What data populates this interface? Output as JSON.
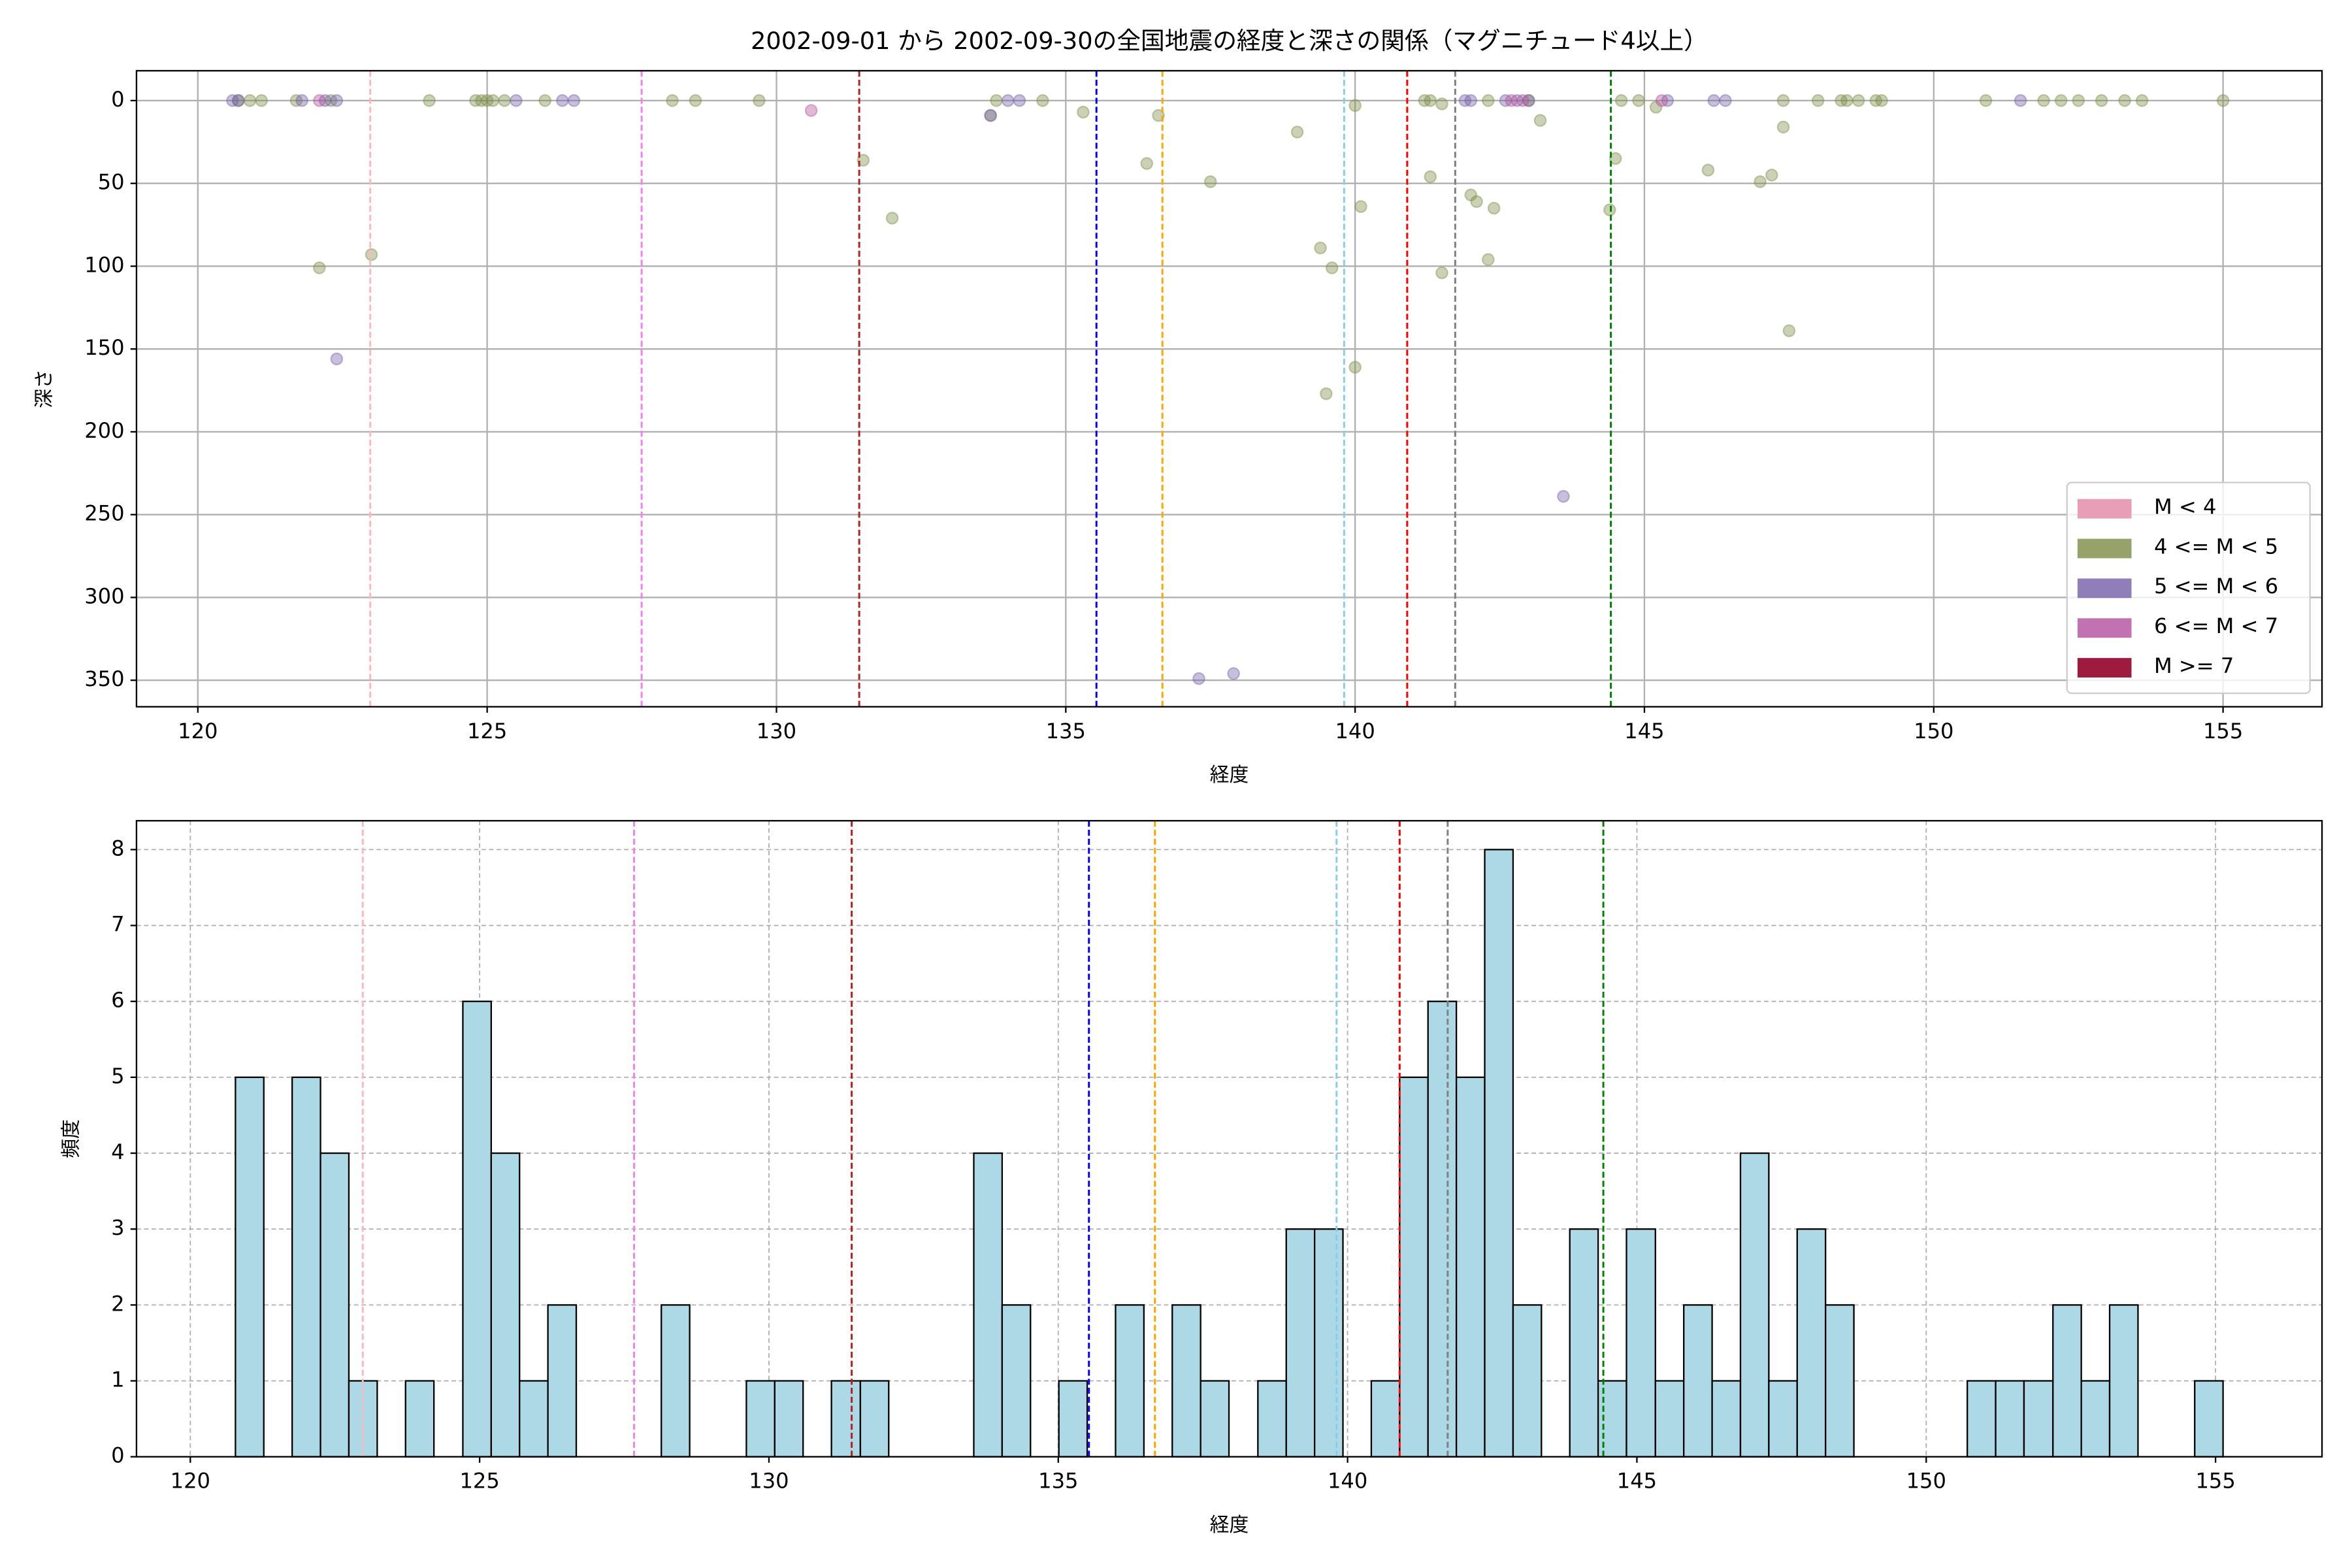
{
  "chart_data": [
    {
      "type": "scatter",
      "title": "2002-09-01 から 2002-09-30の全国地震の経度と深さの関係（マグニチュード4以上）",
      "x_label": "経度",
      "y_label": "深さ",
      "xlim": [
        118.94,
        156.71
      ],
      "ylim": [
        366,
        -18
      ],
      "xticks": [
        120,
        125,
        130,
        135,
        140,
        145,
        150,
        155
      ],
      "yticks": [
        0,
        50,
        100,
        150,
        200,
        250,
        300,
        350
      ],
      "grid": true,
      "grid_style": "solid",
      "legend": "lower right",
      "alpha": 0.4,
      "vlines": [
        {
          "value": 122.98,
          "color": "#ffb6c1"
        },
        {
          "value": 127.67,
          "color": "#ee82ee"
        },
        {
          "value": 131.43,
          "color": "#b22222"
        },
        {
          "value": 135.53,
          "color": "#0000ff"
        },
        {
          "value": 136.67,
          "color": "#ffa500"
        },
        {
          "value": 139.81,
          "color": "#87ceeb"
        },
        {
          "value": 140.9,
          "color": "#ff0000"
        },
        {
          "value": 141.73,
          "color": "#808080"
        },
        {
          "value": 144.42,
          "color": "#008000"
        }
      ],
      "series": [
        {
          "name": "M < 4",
          "color": "#e79eb6",
          "x": [],
          "values": []
        },
        {
          "name": "4 <= M < 5",
          "color": "#7a8c46",
          "x": [
            120.7,
            120.9,
            121.1,
            121.7,
            122.1,
            122.3,
            123.0,
            124.0,
            124.8,
            124.9,
            125.0,
            125.1,
            125.3,
            126.0,
            128.2,
            128.6,
            129.7,
            131.5,
            132.0,
            133.8,
            133.7,
            134.6,
            135.3,
            136.4,
            136.6,
            137.5,
            139.0,
            139.4,
            139.6,
            139.5,
            140.0,
            140.1,
            140.0,
            141.2,
            141.3,
            141.3,
            141.5,
            141.5,
            142.0,
            142.1,
            142.3,
            142.4,
            142.3,
            143.0,
            143.2,
            144.4,
            144.5,
            144.6,
            144.9,
            145.2,
            146.1,
            147.0,
            147.2,
            147.4,
            147.4,
            147.5,
            148.0,
            148.4,
            148.5,
            148.7,
            149.0,
            149.1,
            150.9,
            151.9,
            152.2,
            152.5,
            152.9,
            153.3,
            153.6,
            155.0
          ],
          "values": [
            0,
            0,
            0,
            0,
            101,
            0,
            93,
            0,
            0,
            0,
            0,
            0,
            0,
            0,
            0,
            0,
            0,
            36,
            71,
            0,
            9,
            0,
            7,
            38,
            9,
            49,
            19,
            89,
            101,
            177,
            3,
            64,
            161,
            0,
            0,
            46,
            2,
            104,
            57,
            61,
            0,
            65,
            96,
            0,
            12,
            66,
            35,
            0,
            0,
            4,
            42,
            49,
            45,
            0,
            16,
            139,
            0,
            0,
            0,
            0,
            0,
            0,
            0,
            0,
            0,
            0,
            0,
            0,
            0,
            0
          ]
        },
        {
          "name": "5 <= M < 6",
          "color": "#735ea8",
          "x": [
            120.6,
            120.7,
            121.8,
            122.2,
            122.4,
            122.4,
            125.5,
            126.3,
            126.5,
            133.7,
            134.0,
            134.2,
            137.3,
            137.9,
            141.9,
            142.0,
            142.6,
            142.8,
            143.0,
            143.6,
            145.4,
            146.2,
            146.4,
            151.5
          ],
          "values": [
            0,
            0,
            0,
            0,
            0,
            156,
            0,
            0,
            0,
            9,
            0,
            0,
            349,
            346,
            0,
            0,
            0,
            0,
            0,
            239,
            0,
            0,
            0,
            0
          ]
        },
        {
          "name": "6 <= M < 7",
          "color": "#b34f9c",
          "x": [
            122.1,
            130.6,
            142.7,
            142.9,
            145.3
          ],
          "values": [
            0,
            6,
            0,
            0,
            0
          ]
        },
        {
          "name": "M >= 7",
          "color": "#9e1b3f",
          "x": [],
          "values": []
        }
      ]
    },
    {
      "type": "histogram",
      "x_label": "経度",
      "y_label": "頻度",
      "xlim": [
        119.07,
        156.84
      ],
      "ylim": [
        0,
        8.38
      ],
      "xticks": [
        120,
        125,
        130,
        135,
        140,
        145,
        150,
        155
      ],
      "yticks": [
        0,
        1,
        2,
        3,
        4,
        5,
        6,
        7,
        8
      ],
      "grid": true,
      "grid_style": "dashed",
      "color": "#add8e6",
      "edgecolor": "#000000",
      "vlines": [
        {
          "value": 122.98,
          "color": "#ffb6c1"
        },
        {
          "value": 127.67,
          "color": "#ee82ee"
        },
        {
          "value": 131.43,
          "color": "#b22222"
        },
        {
          "value": 135.53,
          "color": "#0000ff"
        },
        {
          "value": 136.67,
          "color": "#ffa500"
        },
        {
          "value": 139.81,
          "color": "#87ceeb"
        },
        {
          "value": 140.9,
          "color": "#ff0000"
        },
        {
          "value": 141.73,
          "color": "#808080"
        },
        {
          "value": 144.42,
          "color": "#008000"
        }
      ],
      "bins": [
        120.78,
        121.27,
        121.76,
        122.25,
        122.74,
        123.23,
        123.72,
        124.21,
        124.71,
        125.2,
        125.69,
        126.18,
        126.67,
        127.16,
        127.65,
        128.14,
        128.63,
        129.12,
        129.61,
        130.1,
        130.59,
        131.08,
        131.58,
        132.07,
        132.56,
        133.05,
        133.54,
        134.03,
        134.52,
        135.01,
        135.5,
        135.99,
        136.48,
        136.97,
        137.46,
        137.95,
        138.45,
        138.94,
        139.43,
        139.92,
        140.41,
        140.9,
        141.39,
        141.88,
        142.37,
        142.86,
        143.35,
        143.84,
        144.33,
        144.82,
        145.32,
        145.81,
        146.3,
        146.79,
        147.28,
        147.77,
        148.26,
        148.75,
        149.24,
        149.73,
        150.22,
        150.71,
        151.2,
        151.69,
        152.19,
        152.68,
        153.17,
        153.66,
        154.15,
        154.64,
        155.13
      ],
      "counts": [
        5,
        0,
        5,
        4,
        1,
        0,
        1,
        0,
        6,
        4,
        1,
        2,
        0,
        0,
        0,
        2,
        0,
        0,
        1,
        1,
        0,
        1,
        1,
        0,
        0,
        0,
        4,
        2,
        0,
        1,
        0,
        2,
        0,
        2,
        1,
        0,
        1,
        3,
        3,
        0,
        1,
        5,
        6,
        5,
        8,
        2,
        0,
        3,
        1,
        3,
        1,
        2,
        1,
        4,
        1,
        3,
        2,
        0,
        0,
        0,
        0,
        1,
        1,
        1,
        2,
        1,
        2,
        0,
        0,
        1
      ]
    }
  ]
}
